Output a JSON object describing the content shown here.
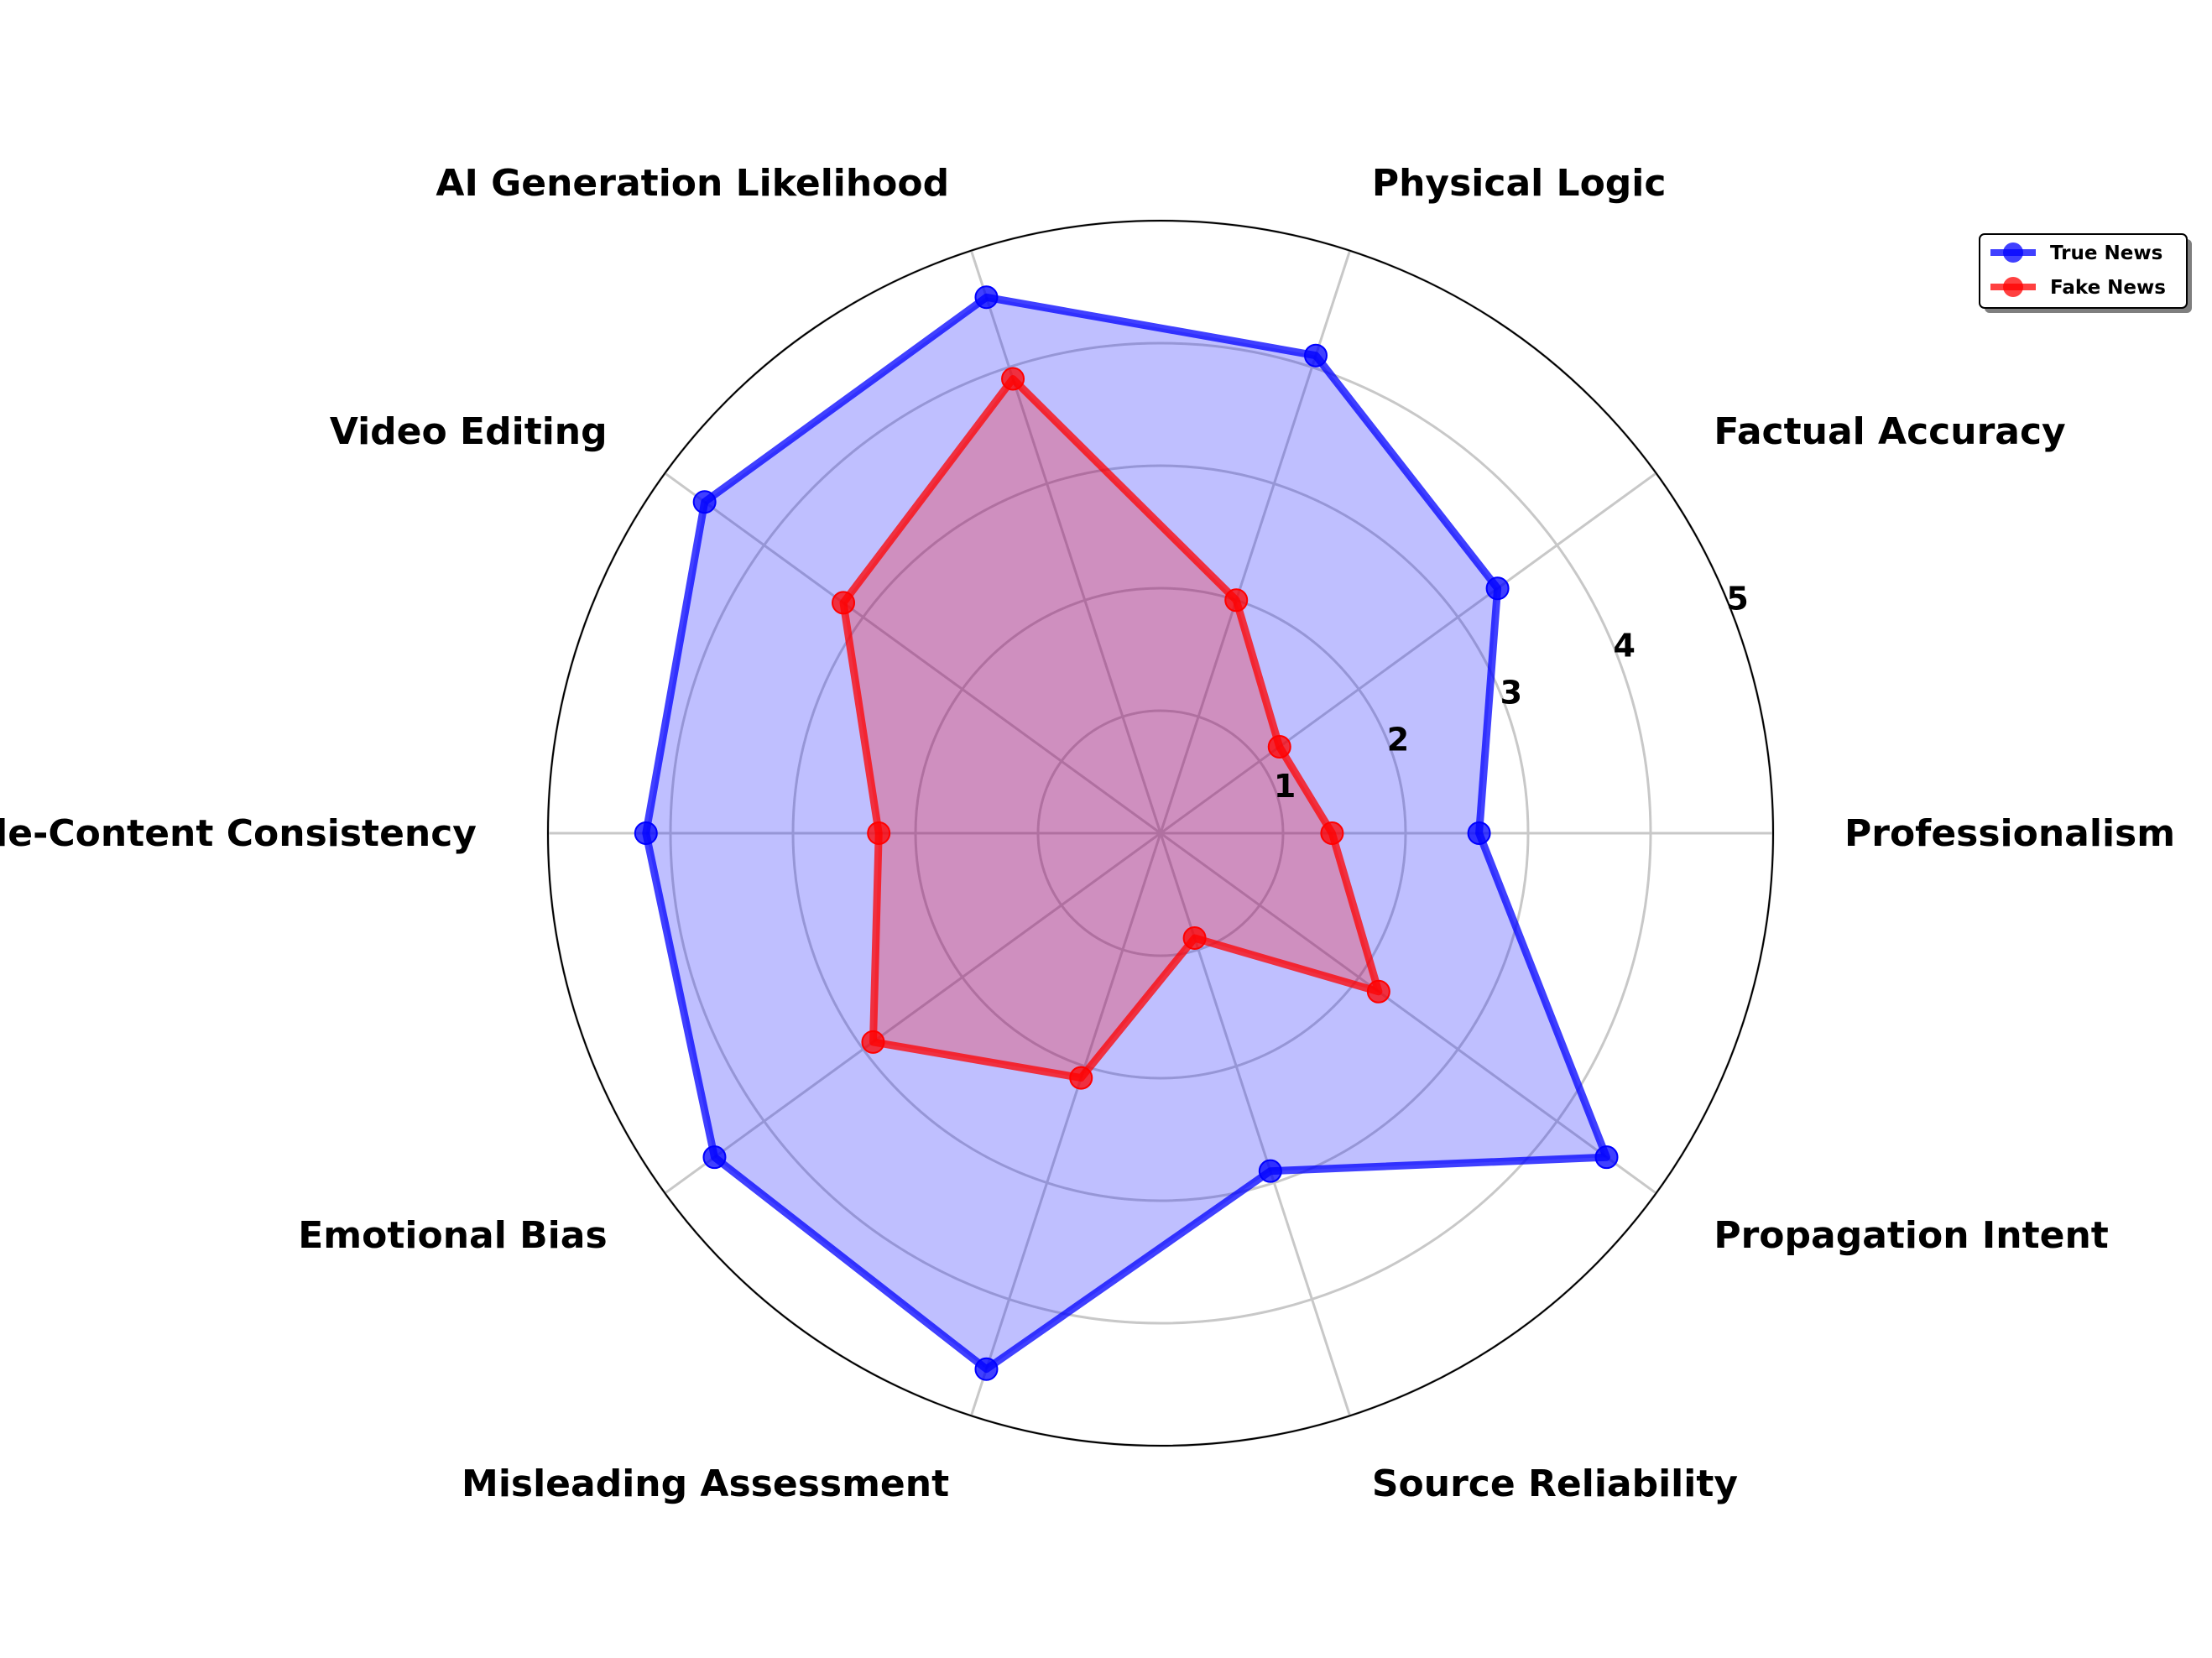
{
  "chart_data": {
    "type": "radar",
    "title": "",
    "axes": [
      "Professionalism",
      "Factual Accuracy",
      "Physical Logic",
      "AI Generation Likelihood",
      "Video Editing",
      "Title-Content Consistency",
      "Emotional Bias",
      "Misleading Assessment",
      "Source Reliability",
      "Propagation Intent"
    ],
    "series": [
      {
        "name": "True News",
        "color": "#0000ff",
        "values": [
          2.6,
          3.4,
          4.1,
          4.6,
          4.6,
          4.2,
          4.5,
          4.6,
          2.9,
          4.5
        ]
      },
      {
        "name": "Fake News",
        "color": "#ff0000",
        "values": [
          1.4,
          1.2,
          2.0,
          3.9,
          3.2,
          2.3,
          2.9,
          2.1,
          0.9,
          2.2
        ]
      }
    ],
    "radial_ticks": [
      "1",
      "2",
      "3",
      "4",
      "5"
    ],
    "rmax": 5,
    "grid": true,
    "legend_position": "top-right"
  }
}
